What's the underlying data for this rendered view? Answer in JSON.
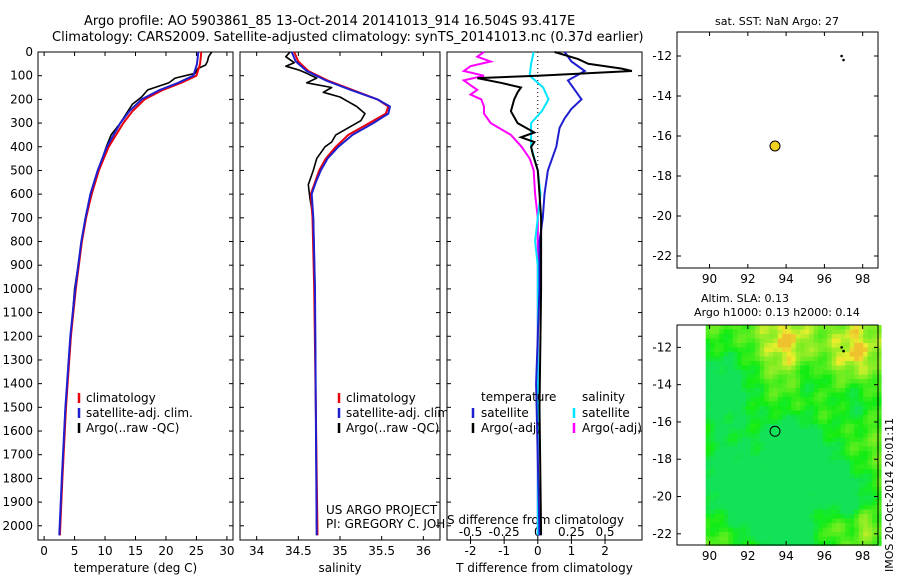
{
  "header": {
    "line1": "Argo profile: AO 5903861_85 13-Oct-2014 20141013_914 16.504S 93.417E",
    "line2": "Climatology: CARS2009. Satellite-adjusted climatology: synTS_20141013.nc (0.37d earlier)"
  },
  "depth_ticks": [
    0,
    100,
    200,
    300,
    400,
    500,
    600,
    700,
    800,
    900,
    1000,
    1100,
    1200,
    1300,
    1400,
    1500,
    1600,
    1700,
    1800,
    1900,
    2000
  ],
  "colors": {
    "climatology": "#e8000b",
    "satellite": "#1f1fd0",
    "argo": "#000000",
    "sal_sat": "#00e5ff",
    "sal_argo": "#ff00ff",
    "dot": "#f2d21e"
  },
  "chart_data": [
    {
      "type": "line",
      "name": "temperature-panel",
      "xlabel": "temperature (deg C)",
      "xlim": [
        -1,
        31
      ],
      "ylim": [
        2060,
        0
      ],
      "xticks": [
        0,
        5,
        10,
        15,
        20,
        25,
        30
      ],
      "legend": [
        "climatology",
        "satellite-adj. clim.",
        "Argo(..raw -QC)"
      ],
      "series": [
        {
          "name": "climatology",
          "depth": [
            0,
            50,
            100,
            130,
            160,
            200,
            250,
            300,
            400,
            500,
            600,
            700,
            800,
            1000,
            1200,
            1500,
            1800,
            2040
          ],
          "values": [
            25.8,
            25.6,
            25,
            22.5,
            19.5,
            16.5,
            14.5,
            13,
            10.6,
            9,
            7.8,
            6.9,
            6.2,
            5.2,
            4.4,
            3.6,
            3.0,
            2.6
          ]
        },
        {
          "name": "satellite-adj. clim.",
          "depth": [
            0,
            50,
            100,
            130,
            160,
            200,
            250,
            300,
            400,
            500,
            600,
            700,
            800,
            1000,
            1200,
            1500,
            1800,
            2040
          ],
          "values": [
            25.3,
            25.1,
            24.5,
            22,
            19,
            16,
            14,
            12.5,
            10.3,
            8.8,
            7.6,
            6.8,
            6.1,
            5.1,
            4.3,
            3.5,
            2.9,
            2.5
          ]
        },
        {
          "name": "Argo",
          "depth": [
            0,
            20,
            40,
            55,
            70,
            90,
            110,
            130,
            160,
            190,
            220,
            260,
            300,
            350,
            400,
            500,
            700,
            1000,
            1500,
            2040
          ],
          "values": [
            27.5,
            27,
            26.8,
            26.5,
            25.2,
            24.8,
            21.5,
            20.5,
            17,
            16,
            14.5,
            13.5,
            12.5,
            11,
            10.2,
            8.9,
            6.8,
            5.0,
            3.5,
            2.5
          ]
        }
      ]
    },
    {
      "type": "line",
      "name": "salinity-panel",
      "xlabel": "salinity",
      "xlim": [
        33.8,
        36.2
      ],
      "ylim": [
        2060,
        0
      ],
      "xticks": [
        34,
        34.5,
        35,
        35.5,
        36
      ],
      "legend": [
        "climatology",
        "satellite-adj. clim.",
        "Argo(..raw -QC)"
      ],
      "annotation": [
        "US ARGO PROJECT",
        "PI: GREGORY C. JOHNSON"
      ],
      "series": [
        {
          "name": "climatology",
          "depth": [
            0,
            40,
            80,
            120,
            160,
            200,
            230,
            260,
            300,
            350,
            400,
            450,
            500,
            550,
            600,
            700,
            1000,
            1500,
            2040
          ],
          "values": [
            34.45,
            34.5,
            34.62,
            34.85,
            35.15,
            35.45,
            35.58,
            35.55,
            35.35,
            35.1,
            34.95,
            34.83,
            34.75,
            34.7,
            34.65,
            34.67,
            34.69,
            34.71,
            34.73
          ]
        },
        {
          "name": "satellite-adj. clim.",
          "depth": [
            0,
            40,
            80,
            120,
            160,
            200,
            230,
            260,
            300,
            350,
            400,
            450,
            500,
            550,
            600,
            700,
            1000,
            1500,
            2040
          ],
          "values": [
            34.42,
            34.47,
            34.6,
            34.83,
            35.13,
            35.45,
            35.6,
            35.58,
            35.4,
            35.15,
            34.98,
            34.85,
            34.77,
            34.71,
            34.66,
            34.68,
            34.7,
            34.71,
            34.72
          ]
        },
        {
          "name": "Argo",
          "depth": [
            0,
            20,
            45,
            60,
            75,
            90,
            110,
            130,
            150,
            170,
            190,
            210,
            230,
            260,
            290,
            320,
            350,
            380,
            400,
            450,
            500,
            560,
            620,
            700,
            1000,
            1500,
            2040
          ],
          "values": [
            34.4,
            34.35,
            34.45,
            34.35,
            34.5,
            34.6,
            34.72,
            34.6,
            34.9,
            34.8,
            35.0,
            35.1,
            35.2,
            35.3,
            35.25,
            35.1,
            34.95,
            34.9,
            34.82,
            34.72,
            34.68,
            34.62,
            34.64,
            34.68,
            34.7,
            34.71,
            34.72
          ]
        }
      ]
    },
    {
      "type": "line",
      "name": "difference-panel",
      "xlabel": "T difference from climatology",
      "xlabel_top": "S difference from climatology",
      "xlim": [
        -2.7,
        3.1
      ],
      "ylim": [
        2060,
        0
      ],
      "xticks": [
        -2,
        -1,
        0,
        1,
        2
      ],
      "sticks": [
        -0.5,
        -0.25,
        0,
        0.25,
        0.5
      ],
      "legend_temperature": [
        "temperature",
        "satellite",
        "Argo(-adj)"
      ],
      "legend_salinity": [
        "salinity",
        "satellite",
        "Argo(-adj)"
      ],
      "series": [
        {
          "name": "T satellite",
          "depth": [
            0,
            40,
            80,
            120,
            160,
            200,
            240,
            280,
            320,
            360,
            400,
            500,
            600,
            700,
            800,
            1000,
            1400,
            2040
          ],
          "values": [
            0.8,
            1.0,
            1.4,
            0.9,
            1.1,
            1.3,
            1.0,
            0.8,
            0.65,
            0.6,
            0.55,
            0.3,
            0.2,
            0.15,
            0.05,
            0.05,
            -0.05,
            0.05
          ]
        },
        {
          "name": "T Argo",
          "depth": [
            0,
            30,
            50,
            70,
            80,
            100,
            110,
            130,
            150,
            170,
            200,
            250,
            300,
            340,
            360,
            380,
            400,
            430,
            500,
            600,
            700,
            1000,
            1500,
            2040
          ],
          "values": [
            0.5,
            1.2,
            1.5,
            2.5,
            2.8,
            0,
            -1.8,
            -1.1,
            -0.5,
            -0.6,
            -0.7,
            -0.8,
            -0.6,
            -0.1,
            -0.5,
            -0.1,
            -0.2,
            -0.15,
            0,
            0.05,
            0.1,
            0.1,
            0.05,
            0.1
          ]
        },
        {
          "name": "S satellite",
          "depth": [
            0,
            50,
            100,
            150,
            200,
            250,
            300,
            400,
            500,
            600,
            700,
            800,
            900,
            1000,
            1400,
            2040
          ],
          "values": [
            -0.03,
            -0.05,
            -0.06,
            0.04,
            0.08,
            0.03,
            -0.05,
            -0.05,
            0,
            0.02,
            0,
            -0.02,
            0,
            0,
            0,
            0
          ]
        },
        {
          "name": "S Argo",
          "depth": [
            0,
            20,
            40,
            60,
            80,
            100,
            120,
            140,
            160,
            180,
            200,
            230,
            260,
            300,
            350,
            400,
            450,
            500,
            600,
            700,
            1000,
            2040
          ],
          "values": [
            -0.4,
            -0.45,
            -0.35,
            -0.5,
            -0.55,
            -0.4,
            -0.55,
            -0.5,
            -0.45,
            -0.5,
            -0.42,
            -0.4,
            -0.4,
            -0.35,
            -0.2,
            -0.12,
            -0.06,
            -0.03,
            -0.02,
            0,
            0,
            0
          ]
        }
      ]
    },
    {
      "type": "scatter",
      "name": "sst-map",
      "title": "sat. SST: NaN Argo: 27",
      "xlim": [
        88.3,
        98.8
      ],
      "ylim": [
        -22.6,
        -10.8
      ],
      "xticks": [
        90,
        92,
        94,
        96,
        98
      ],
      "yticks": [
        -12,
        -14,
        -16,
        -18,
        -20,
        -22
      ],
      "points": [
        {
          "x": 93.42,
          "y": -16.5,
          "label": "Argo"
        }
      ],
      "track": [
        {
          "x": 96.9,
          "y": -12.0
        },
        {
          "x": 97.0,
          "y": -12.2
        }
      ]
    },
    {
      "type": "heatmap",
      "name": "sla-map",
      "title": "Altim. SLA: 0.13",
      "subtitle": "Argo h1000: 0.13 h2000: 0.14",
      "xlim": [
        88.3,
        98.8
      ],
      "ylim": [
        -22.6,
        -10.8
      ],
      "data_extent_x": [
        89.8,
        98.8
      ],
      "xticks": [
        90,
        92,
        94,
        96,
        98
      ],
      "yticks": [
        -12,
        -14,
        -16,
        -18,
        -20,
        -22
      ],
      "points": [
        {
          "x": 93.42,
          "y": -16.5,
          "label": "Argo"
        }
      ],
      "track": [
        {
          "x": 96.9,
          "y": -12.0
        },
        {
          "x": 97.0,
          "y": -12.2
        }
      ]
    }
  ],
  "watermark": "IMOS 20-Oct-2014 20:01:11"
}
